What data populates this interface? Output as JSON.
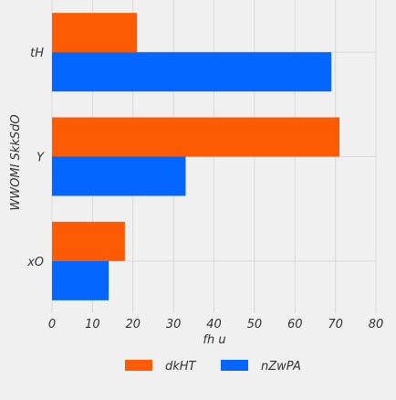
{
  "chart_data": {
    "type": "bar",
    "orientation": "horizontal",
    "categories": [
      "tH",
      "Y",
      "xO"
    ],
    "series": [
      {
        "name": "dkHT",
        "values": [
          21,
          71,
          18
        ]
      },
      {
        "name": "nZwPA",
        "values": [
          69,
          33,
          14
        ]
      }
    ],
    "xlabel": "fh u",
    "ylabel": "WWOMI  SkkSdO",
    "xlim": [
      0,
      80
    ],
    "xticks": [
      "0",
      "10",
      "20",
      "30",
      "40",
      "50",
      "60",
      "70",
      "80"
    ],
    "grid": true,
    "legend_position": "bottom-center"
  },
  "colors": {
    "series": [
      "#fc5a03",
      "#0565ff"
    ],
    "background": "#f0f0f0",
    "grid": "#d8d8d8",
    "text": "#333333"
  }
}
